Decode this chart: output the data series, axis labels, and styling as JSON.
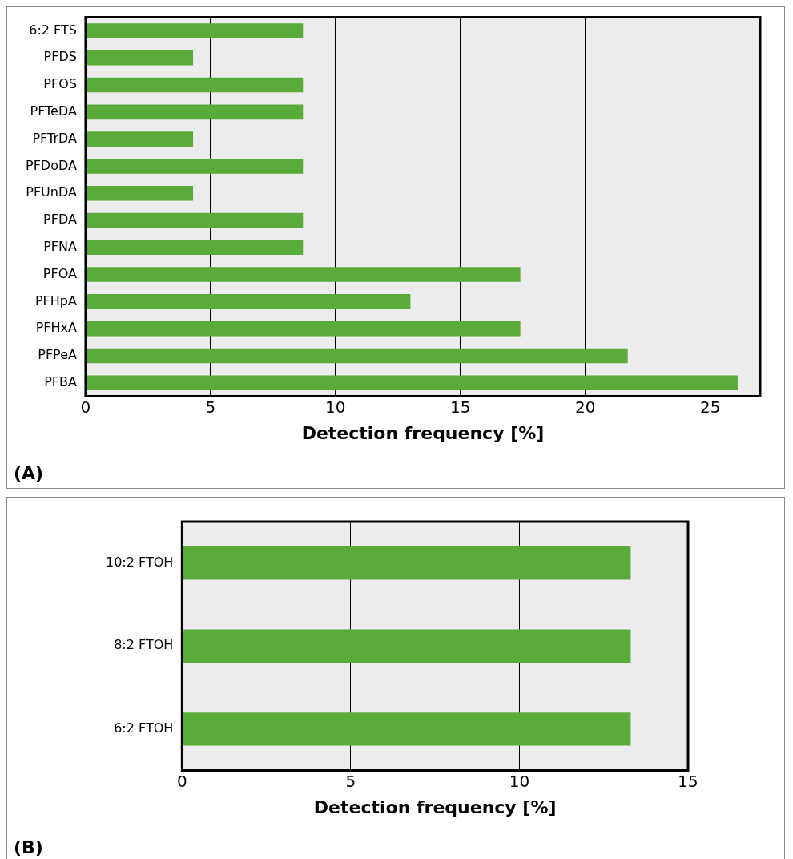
{
  "chart_data": [
    {
      "type": "bar",
      "orientation": "horizontal",
      "categories": [
        "6:2 FTS",
        "PFDS",
        "PFOS",
        "PFTeDA",
        "PFTrDA",
        "PFDoDA",
        "PFUnDA",
        "PFDA",
        "PFNA",
        "PFOA",
        "PFHpA",
        "PFHxA",
        "PFPeA",
        "PFBA"
      ],
      "series": [
        {
          "color": "#5aab3a",
          "values": [
            8.7,
            4.3,
            8.7,
            8.7,
            4.3,
            8.7,
            4.3,
            8.7,
            8.7,
            17.4,
            13.0,
            17.4,
            21.7,
            26.1
          ]
        }
      ],
      "xlabel": "Detection frequency [%]",
      "xlim": [
        0,
        27
      ],
      "xticks": [
        0,
        5,
        10,
        15,
        20,
        25
      ],
      "grid": "x",
      "legend": false,
      "annotations": [
        "(A)"
      ]
    },
    {
      "type": "bar",
      "orientation": "horizontal",
      "categories": [
        "10:2 FTOH",
        "8:2 FTOH",
        "6:2 FTOH"
      ],
      "series": [
        {
          "color": "#5aab3a",
          "values": [
            13.3,
            13.3,
            13.3
          ]
        }
      ],
      "xlabel": "Detection frequency [%]",
      "xlim": [
        0,
        15
      ],
      "xticks": [
        0,
        5,
        10,
        15
      ],
      "grid": "x",
      "legend": false,
      "annotations": [
        "(B)"
      ]
    }
  ]
}
